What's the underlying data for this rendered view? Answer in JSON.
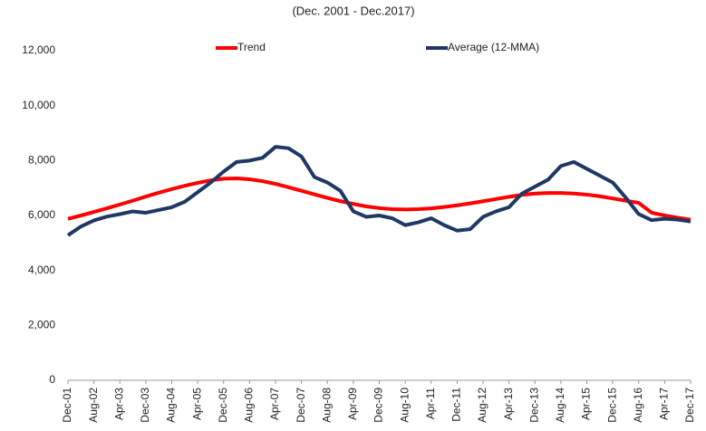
{
  "chart_data": {
    "type": "line",
    "title": "(Dec. 2001 - Dec.2017)",
    "categories": [
      "Dec-01",
      null,
      "Aug-02",
      null,
      "Apr-03",
      null,
      "Dec-03",
      null,
      "Aug-04",
      null,
      "Apr-05",
      null,
      "Dec-05",
      null,
      "Aug-06",
      null,
      "Apr-07",
      null,
      "Dec-07",
      null,
      "Aug-08",
      null,
      "Apr-09",
      null,
      "Dec-09",
      null,
      "Aug-10",
      null,
      "Apr-11",
      null,
      "Dec-11",
      null,
      "Aug-12",
      null,
      "Apr-13",
      null,
      "Dec-13",
      null,
      "Aug-14",
      null,
      "Apr-15",
      null,
      "Dec-15",
      null,
      "Aug-16",
      null,
      "Apr-17",
      null,
      "Dec-17"
    ],
    "series": [
      {
        "name": "Trend",
        "color": "#ff0000",
        "values": [
          5880,
          6000,
          6130,
          6260,
          6400,
          6540,
          6690,
          6830,
          6960,
          7080,
          7190,
          7280,
          7340,
          7350,
          7320,
          7250,
          7150,
          7030,
          6900,
          6770,
          6640,
          6520,
          6420,
          6330,
          6270,
          6230,
          6220,
          6230,
          6260,
          6310,
          6370,
          6440,
          6520,
          6600,
          6680,
          6750,
          6800,
          6820,
          6820,
          6800,
          6760,
          6700,
          6620,
          6540,
          6460,
          6100,
          6000,
          5920,
          5850
        ]
      },
      {
        "name": "Average (12-MMA)",
        "color": "#1f3864",
        "values": [
          5280,
          5600,
          5820,
          5960,
          6050,
          6150,
          6100,
          6200,
          6300,
          6500,
          6850,
          7200,
          7600,
          7950,
          8000,
          8100,
          8500,
          8450,
          8150,
          7400,
          7200,
          6900,
          6150,
          5950,
          6000,
          5900,
          5650,
          5750,
          5900,
          5650,
          5450,
          5500,
          5950,
          6150,
          6300,
          6800,
          7050,
          7300,
          7800,
          7950,
          7700,
          7450,
          7200,
          6650,
          6050,
          5830,
          5880,
          5850,
          5780
        ]
      }
    ],
    "ylim": [
      0,
      12000
    ],
    "yticks": [
      0,
      {
        "value": 2000,
        "label": "2,000"
      },
      {
        "value": 4000,
        "label": "4,000"
      },
      {
        "value": 6000,
        "label": "6,000"
      },
      {
        "value": 8000,
        "label": "8,000"
      },
      {
        "value": 10000,
        "label": "10,000"
      },
      {
        "value": 12000,
        "label": "12,000"
      }
    ],
    "grid": false,
    "legend": "top"
  }
}
